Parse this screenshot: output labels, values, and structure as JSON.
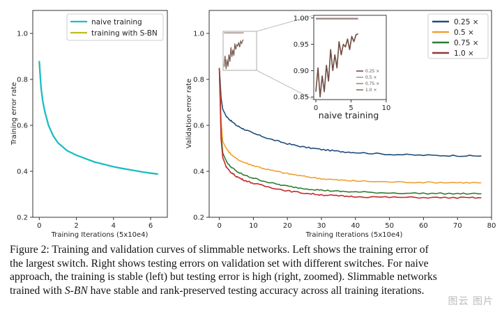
{
  "chart_data": [
    {
      "type": "line",
      "panel": "left",
      "xlabel": "Training Iterations (5x10e4)",
      "ylabel": "Training error rate",
      "xlim": [
        -0.35,
        6.9
      ],
      "ylim": [
        0.2,
        1.1
      ],
      "xticks": [
        0,
        2,
        4,
        6
      ],
      "yticks": [
        0.2,
        0.4,
        0.6,
        0.8,
        1.0
      ],
      "ytick_labels": [
        "0.2",
        "0.4",
        "0.6",
        "0.8",
        "1.0"
      ],
      "legend": "top-right",
      "series": [
        {
          "name": "naive training",
          "color": "#17becf",
          "x": [
            0,
            0.05,
            0.1,
            0.2,
            0.3,
            0.5,
            0.75,
            1.0,
            1.5,
            2.0,
            2.5,
            3.0,
            3.5,
            4.0,
            4.5,
            5.0,
            5.5,
            6.0,
            6.4
          ],
          "y": [
            0.88,
            0.82,
            0.76,
            0.7,
            0.66,
            0.6,
            0.555,
            0.525,
            0.49,
            0.47,
            0.455,
            0.44,
            0.43,
            0.42,
            0.412,
            0.405,
            0.398,
            0.392,
            0.388
          ]
        },
        {
          "name": "training with S-BN",
          "color": "#bcbd22",
          "x": [
            0,
            0.05,
            0.1,
            0.2,
            0.3,
            0.5,
            0.75,
            1.0,
            1.5,
            2.0,
            2.5,
            3.0,
            3.5,
            4.0,
            4.5,
            5.0,
            5.5,
            6.0,
            6.4
          ],
          "y": [
            0.88,
            0.82,
            0.76,
            0.7,
            0.66,
            0.6,
            0.555,
            0.525,
            0.49,
            0.47,
            0.455,
            0.44,
            0.43,
            0.42,
            0.412,
            0.405,
            0.398,
            0.392,
            0.388
          ]
        }
      ]
    },
    {
      "type": "line",
      "panel": "right",
      "xlabel": "Training Iterations (5x10e4)",
      "ylabel": "Validation error rate",
      "xlim": [
        -3,
        80
      ],
      "ylim": [
        0.2,
        1.1
      ],
      "xticks": [
        0,
        10,
        20,
        30,
        40,
        50,
        60,
        70,
        80
      ],
      "yticks": [
        0.2,
        0.4,
        0.6,
        0.8,
        1.0
      ],
      "ytick_labels": [
        "0.2",
        "0.4",
        "0.6",
        "0.8",
        "1.0"
      ],
      "legend": "top-right",
      "series": [
        {
          "name": "0.25 ×",
          "color": "#1f4e79",
          "x": [
            0,
            0.5,
            1,
            2,
            3,
            5,
            7,
            10,
            15,
            20,
            25,
            30,
            35,
            40,
            50,
            60,
            70,
            77
          ],
          "y": [
            0.85,
            0.72,
            0.67,
            0.64,
            0.625,
            0.6,
            0.585,
            0.565,
            0.54,
            0.52,
            0.505,
            0.495,
            0.487,
            0.482,
            0.474,
            0.47,
            0.468,
            0.467
          ]
        },
        {
          "name": "0.5 ×",
          "color": "#f0a030",
          "x": [
            0,
            0.5,
            1,
            2,
            3,
            5,
            7,
            10,
            15,
            20,
            25,
            30,
            35,
            40,
            50,
            60,
            70,
            77
          ],
          "y": [
            0.85,
            0.62,
            0.53,
            0.5,
            0.48,
            0.455,
            0.44,
            0.425,
            0.405,
            0.39,
            0.378,
            0.368,
            0.362,
            0.358,
            0.354,
            0.352,
            0.351,
            0.35
          ]
        },
        {
          "name": "0.75 ×",
          "color": "#2e7d32",
          "x": [
            0,
            0.5,
            1,
            2,
            3,
            5,
            7,
            10,
            15,
            20,
            25,
            30,
            35,
            40,
            50,
            60,
            70,
            77
          ],
          "y": [
            0.85,
            0.56,
            0.48,
            0.445,
            0.425,
            0.4,
            0.385,
            0.37,
            0.35,
            0.335,
            0.325,
            0.318,
            0.313,
            0.31,
            0.306,
            0.304,
            0.303,
            0.302
          ]
        },
        {
          "name": "1.0 ×",
          "color": "#c62828",
          "x": [
            0,
            0.5,
            1,
            2,
            3,
            5,
            7,
            10,
            15,
            20,
            25,
            30,
            35,
            40,
            50,
            60,
            70,
            77
          ],
          "y": [
            0.85,
            0.54,
            0.46,
            0.42,
            0.4,
            0.378,
            0.363,
            0.348,
            0.33,
            0.315,
            0.305,
            0.298,
            0.293,
            0.29,
            0.287,
            0.286,
            0.285,
            0.285
          ]
        }
      ],
      "inset": {
        "title": "naive training",
        "xlim": [
          -0.3,
          10
        ],
        "ylim": [
          0.845,
          1.005
        ],
        "xticks": [
          0,
          5,
          10
        ],
        "yticks": [
          0.85,
          0.9,
          0.95,
          1.0
        ],
        "ytick_labels": [
          "0.85",
          "0.90",
          "0.95",
          "1.00"
        ],
        "legend": [
          "0.25 ×",
          "0.5 ×",
          "0.75 ×",
          "1.0 ×"
        ],
        "series": [
          {
            "name": "0.25 ×",
            "color": "#6d4c41",
            "x": [
              0,
              6
            ],
            "y": [
              0.999,
              0.999
            ]
          },
          {
            "name": "0.5 ×",
            "color": "#9e9e9e",
            "x": [
              0,
              6
            ],
            "y": [
              0.998,
              0.998
            ]
          },
          {
            "name": "0.75 ×",
            "color": "#a1887f",
            "x": [
              0,
              6
            ],
            "y": [
              0.999,
              0.999
            ]
          },
          {
            "name": "1.0 ×",
            "color": "#6d4c41",
            "x": [
              0,
              0.3,
              0.6,
              0.9,
              1.2,
              1.5,
              1.8,
              2.1,
              2.4,
              2.7,
              3.0,
              3.3,
              3.6,
              3.9,
              4.2,
              4.5,
              4.8,
              5.1,
              5.4,
              5.7,
              6.0
            ],
            "y": [
              0.86,
              0.905,
              0.85,
              0.89,
              0.86,
              0.91,
              0.88,
              0.94,
              0.9,
              0.93,
              0.905,
              0.955,
              0.93,
              0.95,
              0.945,
              0.96,
              0.94,
              0.965,
              0.955,
              0.968,
              0.97
            ]
          }
        ]
      }
    }
  ],
  "caption": {
    "line1": "Figure 2:  Training and validation curves of slimmable networks.  Left shows the training error of",
    "line2": "the largest switch.  Right shows testing errors on validation set with different switches.  For naive",
    "line3": "approach, the training is stable (left) but testing error is high (right, zoomed). Slimmable networks",
    "line4_pre": "trained with ",
    "line4_em": "S-BN",
    "line4_post": " have stable and rank-preserved testing accuracy across all training iterations."
  },
  "watermark": "图云 图片"
}
